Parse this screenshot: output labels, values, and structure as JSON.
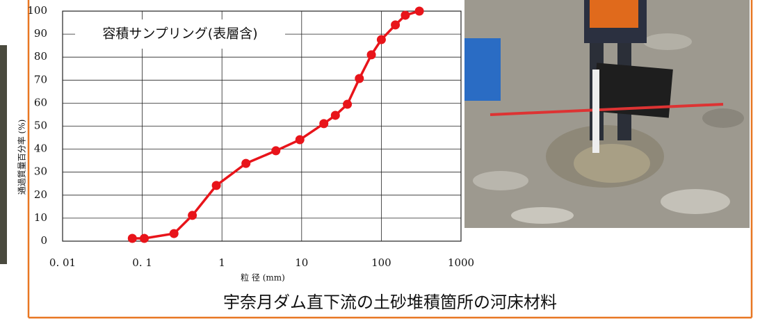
{
  "chart_data": {
    "type": "line",
    "title": "容積サンプリング(表層含)",
    "caption": "宇奈月ダム直下流の土砂堆積箇所の河床材料",
    "x_label": "粒 径 (mm)",
    "y_label": "通過質量百分率 (%)",
    "x_log": true,
    "grid": true,
    "xlim": [
      0.01,
      1000
    ],
    "xticks": [
      {
        "value": 0.01,
        "label": "0. 01"
      },
      {
        "value": 0.1,
        "label": "0. 1"
      },
      1,
      10,
      100,
      1000
    ],
    "ylim": [
      0,
      100
    ],
    "yticks": [
      0,
      10,
      20,
      30,
      40,
      50,
      60,
      70,
      80,
      90,
      100
    ],
    "series": [
      {
        "color": "#e8141a",
        "x": [
          0.075,
          0.106,
          0.25,
          0.425,
          0.85,
          2,
          4.75,
          9.5,
          19,
          26.5,
          37.5,
          53,
          75,
          100,
          150,
          200,
          300
        ],
        "values": [
          1.2,
          1.2,
          3.3,
          11.2,
          24.2,
          33.8,
          39.3,
          44.1,
          51.1,
          54.7,
          59.5,
          70.7,
          81.0,
          87.6,
          94.0,
          98.2,
          100
        ]
      }
    ]
  }
}
